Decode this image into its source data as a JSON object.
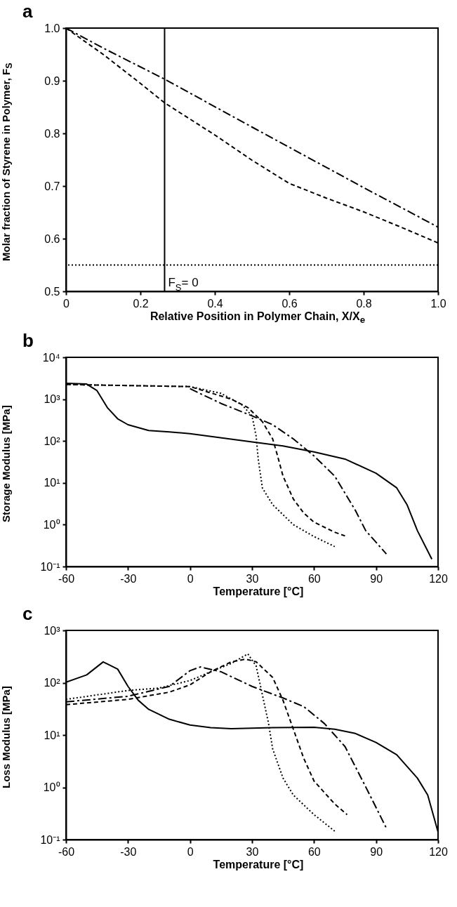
{
  "chart_data": [
    {
      "type": "line",
      "title": "a",
      "xlabel": "Relative Position in Polymer Chain, X/X$_{e}$",
      "ylabel": "Molar fraction of Styrene in Polymer, F$_{S}$",
      "xlim": [
        0,
        1
      ],
      "xticks": [
        0,
        0.2,
        0.4,
        0.6,
        0.8,
        {
          "value": 1,
          "label": "1.0"
        }
      ],
      "ylim": [
        0.5,
        1
      ],
      "yticks": [
        0.5,
        0.6,
        0.7,
        0.8,
        0.9,
        {
          "value": 1,
          "label": "1.0"
        }
      ],
      "series": [
        {
          "color": "#000000",
          "line_style": "dashdot",
          "x": [
            0,
            0.1,
            0.265,
            0.5,
            0.8,
            1
          ],
          "values": [
            1,
            0.962,
            0.903,
            0.812,
            0.697,
            0.622
          ]
        },
        {
          "color": "#000000",
          "line_style": "dashed",
          "x": [
            0,
            0.1,
            0.2,
            0.265,
            0.4,
            0.5,
            0.6,
            0.7,
            0.8,
            0.9,
            1
          ],
          "values": [
            1,
            0.95,
            0.895,
            0.858,
            0.797,
            0.749,
            0.705,
            0.677,
            0.651,
            0.622,
            0.592
          ]
        }
      ],
      "ref_lines": [
        {
          "axis": "y",
          "value": 0.55,
          "line_style": "dotted",
          "color": "#000000"
        },
        {
          "axis": "x",
          "value": 0.265,
          "label": "F$_{S}$= 0",
          "line_style": "solid",
          "color": "#000000"
        }
      ]
    },
    {
      "type": "line",
      "title": "b",
      "xlabel": "Temperature [°C]",
      "ylabel": "Storage Modulus  [MPa]",
      "log": true,
      "xlim": [
        -60,
        120
      ],
      "xticks": [
        -60,
        -30,
        0,
        30,
        60,
        90,
        120
      ],
      "ylim": [
        0.1,
        10000
      ],
      "yticks": [
        {
          "value": 0.1,
          "label": "10⁻¹"
        },
        {
          "value": 1,
          "label": "10⁰"
        },
        {
          "value": 10,
          "label": "10¹"
        },
        {
          "value": 100,
          "label": "10²"
        },
        {
          "value": 1000,
          "label": "10³"
        },
        {
          "value": 10000,
          "label": "10⁴"
        }
      ],
      "series": [
        {
          "color": "#000000",
          "line_style": "solid",
          "x": [
            -60,
            -50,
            -45,
            -40,
            -35,
            -30,
            -20,
            -10,
            0,
            30,
            45,
            60,
            75,
            90,
            100,
            105,
            110,
            117
          ],
          "values": [
            2400,
            2300,
            1600,
            630,
            340,
            245,
            178,
            165,
            150,
            95,
            76,
            55,
            37,
            17,
            7.6,
            3.0,
            0.72,
            0.15
          ]
        },
        {
          "color": "#000000",
          "line_style": "dotted",
          "x": [
            -60,
            0,
            15,
            25,
            30,
            32,
            33,
            35,
            40,
            50,
            60,
            70
          ],
          "values": [
            2240,
            2000,
            1380,
            740,
            400,
            130,
            37,
            7.6,
            3.0,
            1.0,
            0.52,
            0.3
          ]
        },
        {
          "color": "#000000",
          "line_style": "dashed",
          "x": [
            -60,
            0,
            20,
            28,
            35,
            40,
            42,
            45,
            50,
            55,
            60,
            70,
            75
          ],
          "values": [
            2240,
            2000,
            1000,
            630,
            290,
            112,
            51,
            14.5,
            4.1,
            1.9,
            1.15,
            0.66,
            0.54
          ]
        },
        {
          "color": "#000000",
          "line_style": "dashdot",
          "x": [
            0,
            15,
            30,
            40,
            50,
            60,
            70,
            80,
            85,
            90,
            95
          ],
          "values": [
            1780,
            790,
            400,
            245,
            112,
            44,
            14.5,
            2.2,
            0.72,
            0.38,
            0.2
          ]
        }
      ]
    },
    {
      "type": "line",
      "title": "c",
      "xlabel": "Temperature [°C]",
      "ylabel": "Loss Modulus  [MPa]",
      "log": true,
      "xlim": [
        -60,
        120
      ],
      "xticks": [
        -60,
        -30,
        0,
        30,
        60,
        90,
        120
      ],
      "ylim": [
        0.1,
        1000
      ],
      "yticks": [
        {
          "value": 0.1,
          "label": "10⁻¹"
        },
        {
          "value": 1,
          "label": "10⁰"
        },
        {
          "value": 10,
          "label": "10¹"
        },
        {
          "value": 100,
          "label": "10²"
        },
        {
          "value": 1000,
          "label": "10³"
        }
      ],
      "series": [
        {
          "color": "#000000",
          "line_style": "solid",
          "x": [
            -60,
            -50,
            -42,
            -35,
            -30,
            -25,
            -20,
            -10,
            0,
            10,
            20,
            40,
            60,
            70,
            80,
            90,
            100,
            110,
            115,
            120
          ],
          "values": [
            102,
            141,
            250,
            182,
            85,
            46,
            31,
            20,
            15.5,
            13.8,
            13.2,
            13.8,
            14.1,
            12.9,
            10.7,
            7.2,
            4.2,
            1.5,
            0.71,
            0.14
          ]
        },
        {
          "color": "#000000",
          "line_style": "dotted",
          "x": [
            -60,
            -30,
            -15,
            0,
            10,
            20,
            28,
            32,
            35,
            38,
            40,
            45,
            50,
            60,
            70
          ],
          "values": [
            48,
            71,
            79,
            110,
            162,
            234,
            355,
            209,
            59,
            16.6,
            5.4,
            1.5,
            0.71,
            0.3,
            0.145
          ]
        },
        {
          "color": "#000000",
          "line_style": "dashed",
          "x": [
            -60,
            -30,
            -10,
            0,
            10,
            20,
            27,
            32,
            40,
            45,
            50,
            55,
            60,
            70,
            76
          ],
          "values": [
            38,
            48,
            66,
            91,
            162,
            251,
            282,
            251,
            126,
            46,
            12.9,
            3.6,
            1.32,
            0.48,
            0.3
          ]
        },
        {
          "color": "#000000",
          "line_style": "dashdot",
          "x": [
            -60,
            -30,
            -10,
            0,
            5,
            15,
            30,
            45,
            55,
            65,
            75,
            85,
            95
          ],
          "values": [
            43,
            55,
            85,
            170,
            200,
            162,
            85,
            51,
            35,
            16.6,
            6.0,
            1.02,
            0.166
          ]
        }
      ]
    }
  ]
}
